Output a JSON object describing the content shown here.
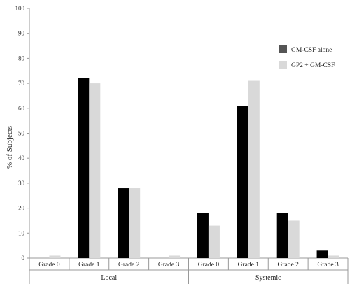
{
  "chart_data": {
    "type": "bar",
    "title": "",
    "xlabel": "",
    "ylabel": "% of Subjects",
    "ylim": [
      0,
      100
    ],
    "yticks": [
      0,
      10,
      20,
      30,
      40,
      50,
      60,
      70,
      80,
      90,
      100
    ],
    "grid": false,
    "legend_position": "right",
    "groups": [
      {
        "label": "Local",
        "categories": [
          "Grade 0",
          "Grade 1",
          "Grade 2",
          "Grade 3"
        ]
      },
      {
        "label": "Systemic",
        "categories": [
          "Grade 0",
          "Grade 1",
          "Grade 2",
          "Grade 3"
        ]
      }
    ],
    "categories": [
      "Grade 0",
      "Grade 1",
      "Grade 2",
      "Grade 3",
      "Grade 0",
      "Grade 1",
      "Grade 2",
      "Grade 3"
    ],
    "series": [
      {
        "name": "GM-CSF alone",
        "color": "#000000",
        "legend_color": "#555555",
        "values": [
          0,
          72,
          28,
          0,
          18,
          61,
          18,
          3
        ]
      },
      {
        "name": "GP2 + GM-CSF",
        "color": "#d9d9d9",
        "legend_color": "#d9d9d9",
        "values": [
          1,
          70,
          28,
          1,
          13,
          71,
          15,
          1
        ]
      }
    ]
  }
}
